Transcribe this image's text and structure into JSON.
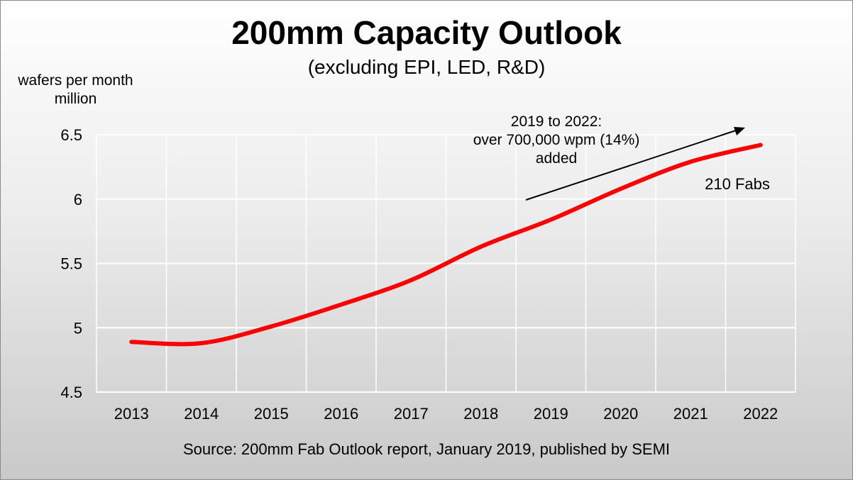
{
  "chart_data": {
    "type": "line",
    "title": "200mm Capacity Outlook",
    "subtitle": "(excluding EPI, LED, R&D)",
    "ylabel": "wafers per month million",
    "ylabel_lines": [
      "wafers per month",
      "million"
    ],
    "xlabel": "",
    "categories": [
      "2013",
      "2014",
      "2015",
      "2016",
      "2017",
      "2018",
      "2019",
      "2020",
      "2021",
      "2022"
    ],
    "series": [
      {
        "values": [
          4.89,
          4.88,
          5.01,
          5.18,
          5.37,
          5.63,
          5.84,
          6.08,
          6.29,
          6.42
        ],
        "color": "#ff0000"
      }
    ],
    "ylim": [
      4.5,
      6.5
    ],
    "yticks": [
      "4.5",
      "5",
      "5.5",
      "6",
      "6.5"
    ],
    "grid": true,
    "annotations": [
      {
        "lines": [
          "2019 to 2022:",
          "over 700,000 wpm  (14%)",
          "added"
        ],
        "arrow": true
      },
      {
        "text": "210 Fabs"
      }
    ],
    "source": "Source: 200mm Fab Outlook report, January 2019, published by SEMI"
  }
}
